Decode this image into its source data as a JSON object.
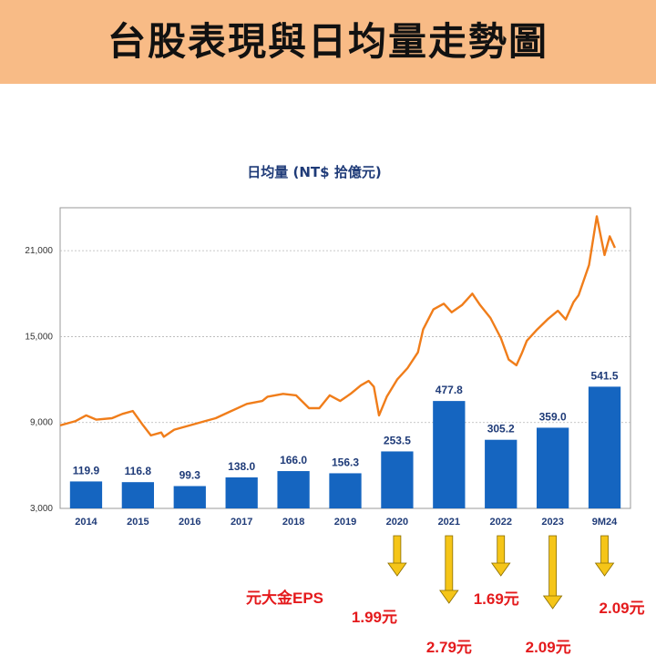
{
  "header": {
    "title": "台股表現與日均量走勢圖"
  },
  "eps_caption": "元大金EPS",
  "chart_data": {
    "type": "bar",
    "title": "日均量 (NT$ 拾億元)",
    "xlabel": "",
    "ylabel": "",
    "categories": [
      "2014",
      "2015",
      "2016",
      "2017",
      "2018",
      "2019",
      "2020",
      "2021",
      "2022",
      "2023",
      "9M24"
    ],
    "ylim": [
      3000,
      24000
    ],
    "yticks": [
      3000,
      9000,
      15000,
      21000
    ],
    "ytick_labels": [
      "3,000",
      "9,000",
      "15,000",
      "21,000"
    ],
    "grid": true,
    "series": [
      {
        "type": "bar",
        "color": "#1565c0",
        "values": [
          119.9,
          116.8,
          99.3,
          138.0,
          166.0,
          156.3,
          253.5,
          477.8,
          305.2,
          359.0,
          541.5
        ],
        "labels": [
          "119.9",
          "116.8",
          "99.3",
          "138.0",
          "166.0",
          "156.3",
          "253.5",
          "477.8",
          "305.2",
          "359.0",
          "541.5"
        ]
      },
      {
        "type": "line",
        "color": "#f07d1a",
        "points": [
          [
            2014.0,
            8800
          ],
          [
            2014.3,
            9100
          ],
          [
            2014.5,
            9500
          ],
          [
            2014.7,
            9200
          ],
          [
            2015.0,
            9300
          ],
          [
            2015.2,
            9600
          ],
          [
            2015.4,
            9800
          ],
          [
            2015.6,
            8800
          ],
          [
            2015.75,
            8100
          ],
          [
            2015.95,
            8300
          ],
          [
            2016.0,
            8000
          ],
          [
            2016.2,
            8500
          ],
          [
            2016.5,
            8800
          ],
          [
            2016.8,
            9100
          ],
          [
            2017.0,
            9300
          ],
          [
            2017.3,
            9800
          ],
          [
            2017.6,
            10300
          ],
          [
            2017.9,
            10500
          ],
          [
            2018.0,
            10800
          ],
          [
            2018.3,
            11000
          ],
          [
            2018.55,
            10900
          ],
          [
            2018.8,
            10000
          ],
          [
            2019.0,
            10000
          ],
          [
            2019.2,
            10900
          ],
          [
            2019.4,
            10500
          ],
          [
            2019.6,
            11000
          ],
          [
            2019.8,
            11600
          ],
          [
            2019.95,
            11900
          ],
          [
            2020.05,
            11500
          ],
          [
            2020.15,
            9500
          ],
          [
            2020.3,
            10800
          ],
          [
            2020.5,
            12000
          ],
          [
            2020.7,
            12800
          ],
          [
            2020.9,
            13900
          ],
          [
            2021.0,
            15500
          ],
          [
            2021.2,
            16900
          ],
          [
            2021.4,
            17300
          ],
          [
            2021.55,
            16700
          ],
          [
            2021.75,
            17200
          ],
          [
            2021.95,
            18000
          ],
          [
            2022.1,
            17200
          ],
          [
            2022.3,
            16300
          ],
          [
            2022.5,
            14900
          ],
          [
            2022.65,
            13400
          ],
          [
            2022.8,
            13000
          ],
          [
            2022.9,
            13800
          ],
          [
            2023.0,
            14700
          ],
          [
            2023.2,
            15500
          ],
          [
            2023.4,
            16200
          ],
          [
            2023.6,
            16800
          ],
          [
            2023.75,
            16200
          ],
          [
            2023.9,
            17400
          ],
          [
            2024.0,
            17900
          ],
          [
            2024.2,
            20000
          ],
          [
            2024.35,
            23400
          ],
          [
            2024.5,
            20700
          ],
          [
            2024.6,
            22000
          ],
          [
            2024.7,
            21200
          ]
        ]
      }
    ],
    "eps": {
      "years": [
        "2020",
        "2021",
        "2022",
        "2023",
        "9M24"
      ],
      "values": [
        "1.99元",
        "2.79元",
        "1.69元",
        "2.09元",
        "2.09元"
      ]
    }
  }
}
